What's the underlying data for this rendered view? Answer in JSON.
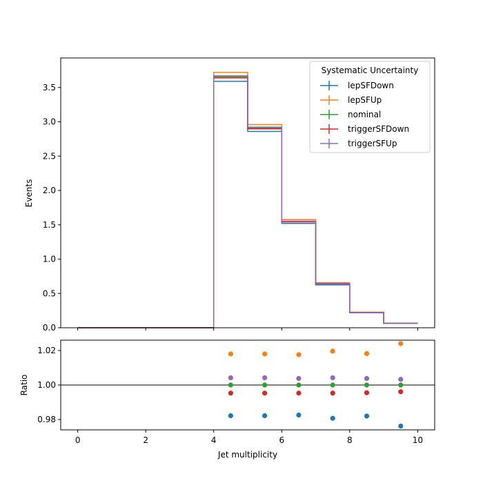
{
  "chart_data": {
    "type": "line",
    "drawstyle": "steps-post",
    "x_edges": [
      0,
      1,
      2,
      3,
      4,
      5,
      6,
      7,
      8,
      9,
      10
    ],
    "xlabel": "Jet multiplicity",
    "ylabel": "Events",
    "xlim": [
      -0.5,
      10.5
    ],
    "ylim": [
      0,
      3.93
    ],
    "xticks": [
      "0",
      "2",
      "4",
      "6",
      "8",
      "10"
    ],
    "yticks": [
      "0.0",
      "0.5",
      "1.0",
      "1.5",
      "2.0",
      "2.5",
      "3.0",
      "3.5"
    ],
    "legend": {
      "title": "Systematic Uncertainty",
      "placement": "top-right"
    },
    "grid": false,
    "series": [
      {
        "name": "lepSFDown",
        "color": "#1f77b4",
        "values": [
          0,
          0,
          0,
          0,
          3.59,
          2.86,
          1.52,
          0.625,
          0.218,
          0.064
        ]
      },
      {
        "name": "lepSFUp",
        "color": "#ff7f0e",
        "values": [
          0,
          0,
          0,
          0,
          3.72,
          2.96,
          1.575,
          0.656,
          0.227,
          0.067
        ]
      },
      {
        "name": "nominal",
        "color": "#2ca02c",
        "values": [
          0,
          0,
          0,
          0,
          3.655,
          2.91,
          1.548,
          0.643,
          0.222,
          0.065
        ]
      },
      {
        "name": "triggerSFDown",
        "color": "#d62728",
        "values": [
          0,
          0,
          0,
          0,
          3.64,
          2.897,
          1.541,
          0.64,
          0.221,
          0.065
        ]
      },
      {
        "name": "triggerSFUp",
        "color": "#9467bd",
        "values": [
          0,
          0,
          0,
          0,
          3.67,
          2.922,
          1.554,
          0.646,
          0.223,
          0.066
        ]
      }
    ],
    "ratio_panel": {
      "ylabel": "Ratio",
      "ylim": [
        0.974,
        1.026
      ],
      "yticks": [
        "0.98",
        "1.00",
        "1.02"
      ],
      "reference_line": 1.0,
      "x": [
        4.5,
        5.5,
        6.5,
        7.5,
        8.5,
        9.5
      ],
      "series": [
        {
          "name": "lepSFDown",
          "color": "#1f77b4",
          "values": [
            0.9822,
            0.9822,
            0.9826,
            0.9807,
            0.982,
            0.9762
          ]
        },
        {
          "name": "lepSFUp",
          "color": "#ff7f0e",
          "values": [
            1.018,
            1.018,
            1.0176,
            1.0196,
            1.0182,
            1.024
          ]
        },
        {
          "name": "nominal",
          "color": "#2ca02c",
          "values": [
            1.0,
            1.0,
            1.0,
            1.0,
            1.0,
            1.0
          ]
        },
        {
          "name": "triggerSFDown",
          "color": "#d62728",
          "values": [
            0.9953,
            0.9953,
            0.9953,
            0.9953,
            0.9955,
            0.9961
          ]
        },
        {
          "name": "triggerSFUp",
          "color": "#9467bd",
          "values": [
            1.0042,
            1.0042,
            1.0038,
            1.0042,
            1.0038,
            1.0033
          ]
        }
      ]
    }
  }
}
